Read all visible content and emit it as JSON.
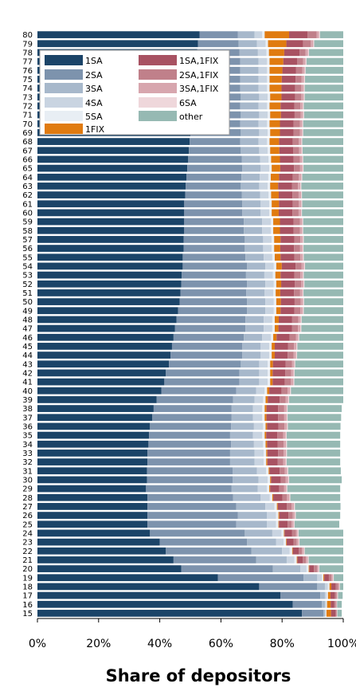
{
  "chart_data": {
    "type": "bar",
    "orientation": "horizontal",
    "stacked": true,
    "xlabel": "Share of depositors",
    "ylabel": "",
    "xlim": [
      0,
      100
    ],
    "x_ticks": [
      "0%",
      "20%",
      "40%",
      "60%",
      "80%",
      "100%"
    ],
    "legend_position": "top-left",
    "categories": [
      "15",
      "16",
      "17",
      "18",
      "19",
      "20",
      "21",
      "22",
      "23",
      "24",
      "25",
      "26",
      "27",
      "28",
      "29",
      "30",
      "31",
      "32",
      "33",
      "34",
      "35",
      "36",
      "37",
      "38",
      "39",
      "40",
      "41",
      "42",
      "43",
      "44",
      "45",
      "46",
      "47",
      "48",
      "49",
      "50",
      "51",
      "52",
      "53",
      "54",
      "55",
      "56",
      "57",
      "58",
      "59",
      "60",
      "61",
      "62",
      "63",
      "64",
      "65",
      "66",
      "67",
      "68",
      "69",
      "70",
      "71",
      "72",
      "73",
      "74",
      "75",
      "76",
      "77",
      "78",
      "79",
      "80"
    ],
    "series": [
      {
        "name": "1SA",
        "color": "#1b4468",
        "values": [
          86.5,
          83.5,
          79.5,
          72.5,
          59,
          47,
          44.5,
          42,
          40,
          36.8,
          36,
          36,
          36,
          36,
          35.5,
          35.8,
          35.8,
          36,
          36,
          36.3,
          36.5,
          36.8,
          37.5,
          38,
          39,
          40.5,
          41.5,
          42,
          43,
          43.5,
          44,
          44.5,
          45,
          45.5,
          46,
          46.5,
          46.8,
          47,
          47.2,
          47.5,
          47.5,
          47.8,
          47.8,
          48,
          48,
          48,
          48,
          48.3,
          48.5,
          48.7,
          49,
          49.3,
          49.5,
          49.8,
          50,
          50.3,
          50.5,
          50.8,
          51,
          51.3,
          51.5,
          51.8,
          52,
          52.3,
          52.5,
          53
        ]
      },
      {
        "name": "2SA",
        "color": "#7d93ad",
        "values": [
          7,
          9.5,
          13,
          19,
          28,
          30,
          27,
          28,
          28.5,
          31,
          29,
          29.5,
          29,
          28,
          28,
          28,
          28,
          27,
          27,
          27,
          26.5,
          26.5,
          26,
          25.5,
          25,
          24.5,
          24.5,
          24,
          23.5,
          23.5,
          23,
          23,
          23,
          22.5,
          22.5,
          22,
          21.5,
          21.5,
          21,
          21,
          20.5,
          20,
          20,
          19.5,
          19.5,
          19,
          19,
          18.5,
          18,
          18,
          18,
          17.5,
          17,
          16.5,
          16.5,
          16,
          16,
          15.5,
          15.5,
          15,
          14.8,
          14.5,
          14.3,
          13.8,
          13.3,
          12.5
        ]
      },
      {
        "name": "3SA",
        "color": "#a7b8cb",
        "values": [
          0.5,
          1,
          1.5,
          2.5,
          4.5,
          9,
          10,
          10,
          9.5,
          9,
          10,
          9.5,
          9.5,
          9,
          8.5,
          8.5,
          8,
          8,
          8,
          7.5,
          7.5,
          7.5,
          7,
          7,
          7,
          6.5,
          6.5,
          6.5,
          6,
          6,
          6,
          6,
          6,
          6,
          6,
          6,
          6,
          6,
          6,
          6,
          6,
          6,
          6,
          6,
          6,
          6,
          6,
          6,
          6,
          6,
          6,
          6,
          6,
          6,
          6,
          6,
          6,
          6,
          6,
          6,
          6,
          6,
          6,
          6,
          6,
          5.5
        ]
      },
      {
        "name": "4SA",
        "color": "#c9d4e1",
        "values": [
          0.3,
          0.4,
          0.6,
          1,
          1.5,
          2,
          2.5,
          2.5,
          2.5,
          3,
          3,
          3,
          3,
          3,
          3,
          3,
          3,
          3,
          3,
          3,
          3,
          3,
          3,
          3,
          2.8,
          2.8,
          2.8,
          2.8,
          2.8,
          2.8,
          2.8,
          2.8,
          2.8,
          2.8,
          2.8,
          2.8,
          2.8,
          2.8,
          2.8,
          2.8,
          2.8,
          2.8,
          2.8,
          2.8,
          2.8,
          2.8,
          2.8,
          2.8,
          2.8,
          2.8,
          2.8,
          2.8,
          2.8,
          2.8,
          2.8,
          2.8,
          2.8,
          2.8,
          2.8,
          2.8,
          2.8,
          2.8,
          2.8,
          2.8,
          2.8,
          2.5
        ]
      },
      {
        "name": "5SA",
        "color": "#e8eef4",
        "values": [
          0.2,
          0.3,
          0.4,
          0.5,
          0.5,
          0.7,
          0.8,
          0.8,
          0.8,
          0.8,
          0.8,
          0.8,
          0.8,
          0.8,
          0.8,
          0.8,
          0.8,
          0.8,
          0.8,
          0.8,
          0.8,
          0.8,
          0.8,
          0.8,
          0.8,
          0.8,
          0.8,
          0.8,
          0.8,
          0.8,
          0.8,
          0.8,
          0.8,
          0.8,
          0.8,
          0.8,
          0.8,
          0.8,
          0.8,
          0.8,
          0.8,
          0.8,
          0.8,
          0.8,
          0.8,
          0.8,
          0.8,
          0.8,
          0.8,
          0.8,
          0.8,
          0.8,
          0.8,
          0.8,
          0.8,
          0.8,
          0.8,
          0.8,
          0.8,
          0.8,
          0.8,
          0.8,
          0.8,
          0.8,
          0.8,
          0.8
        ]
      },
      {
        "name": "1FIX",
        "color": "#e07b10",
        "values": [
          1.5,
          1.2,
          0.8,
          0.6,
          0.3,
          0.2,
          0.2,
          0.2,
          0.2,
          0.2,
          0.2,
          0.3,
          0.3,
          0.3,
          0.3,
          0.3,
          0.3,
          0.4,
          0.4,
          0.5,
          0.5,
          0.5,
          0.6,
          0.6,
          0.7,
          0.7,
          0.8,
          0.8,
          0.9,
          1,
          1,
          1.1,
          1.2,
          1.3,
          1.4,
          1.5,
          1.5,
          1.6,
          1.7,
          1.8,
          1.9,
          2,
          2.1,
          2.2,
          2.2,
          2.3,
          2.4,
          2.5,
          2.6,
          2.7,
          2.8,
          2.9,
          3,
          3.1,
          3.2,
          3.4,
          3.5,
          3.6,
          3.7,
          3.9,
          4,
          4.2,
          4.5,
          5,
          6,
          8
        ]
      },
      {
        "name": "1SA,1FIX",
        "color": "#a85262",
        "values": [
          1.5,
          1.2,
          1.5,
          1.5,
          1.5,
          1.5,
          1.8,
          2,
          2.3,
          2.5,
          2.8,
          3,
          3,
          3,
          3,
          3.2,
          3.3,
          3.4,
          3.5,
          3.5,
          3.6,
          3.7,
          3.8,
          3.8,
          3.9,
          4,
          4,
          4.1,
          4.2,
          4.2,
          4.3,
          4.3,
          4.4,
          4.4,
          4.5,
          4.5,
          4.5,
          4.5,
          4.5,
          4.5,
          4.5,
          4.5,
          4.5,
          4.5,
          4.5,
          4.5,
          4.5,
          4.5,
          4.5,
          4.5,
          4.5,
          4.5,
          4.5,
          4.5,
          4.5,
          4.5,
          4.5,
          4.5,
          4.5,
          4.5,
          4.5,
          4.5,
          4.5,
          5,
          5.5,
          6
        ]
      },
      {
        "name": "2SA,1FIX",
        "color": "#c0808a",
        "values": [
          0.3,
          0.5,
          0.5,
          0.7,
          0.8,
          1,
          1,
          1,
          1,
          1.2,
          1.3,
          1.4,
          1.5,
          1.5,
          1.5,
          1.6,
          1.7,
          1.8,
          1.8,
          1.9,
          2,
          2,
          2,
          2,
          2,
          2,
          2,
          2,
          2,
          2,
          2,
          2,
          2,
          2,
          2,
          2,
          2,
          2,
          2,
          2,
          2,
          2,
          2,
          2,
          2,
          2,
          2,
          2,
          2,
          2,
          2,
          2,
          2,
          2,
          2,
          2,
          2,
          2,
          2,
          2,
          2,
          2,
          2,
          2,
          2.5,
          3
        ]
      },
      {
        "name": "3SA,1FIX",
        "color": "#d7a6ae",
        "values": [
          0.2,
          0.3,
          0.3,
          0.4,
          0.5,
          0.5,
          0.6,
          0.6,
          0.6,
          0.6,
          0.7,
          0.7,
          0.8,
          0.8,
          0.8,
          0.8,
          0.8,
          0.8,
          0.8,
          0.8,
          0.8,
          0.8,
          0.8,
          0.8,
          0.8,
          0.8,
          0.8,
          0.8,
          0.8,
          0.8,
          0.8,
          0.8,
          0.8,
          0.8,
          0.8,
          0.8,
          0.8,
          0.8,
          0.8,
          0.8,
          0.8,
          0.8,
          0.8,
          0.8,
          0.8,
          0.8,
          0.8,
          0.8,
          0.8,
          0.8,
          0.8,
          0.8,
          0.8,
          0.8,
          0.8,
          0.8,
          0.8,
          0.8,
          0.8,
          0.8,
          0.8,
          0.8,
          0.8,
          0.8,
          0.8,
          0.8
        ]
      },
      {
        "name": "6SA",
        "color": "#efd7db",
        "values": [
          0.1,
          0.1,
          0.2,
          0.2,
          0.3,
          0.3,
          0.3,
          0.3,
          0.3,
          0.3,
          0.3,
          0.3,
          0.3,
          0.3,
          0.3,
          0.3,
          0.3,
          0.3,
          0.3,
          0.3,
          0.3,
          0.3,
          0.3,
          0.3,
          0.3,
          0.3,
          0.3,
          0.3,
          0.3,
          0.3,
          0.3,
          0.3,
          0.3,
          0.3,
          0.3,
          0.3,
          0.3,
          0.3,
          0.3,
          0.3,
          0.3,
          0.3,
          0.3,
          0.3,
          0.3,
          0.3,
          0.3,
          0.3,
          0.3,
          0.3,
          0.3,
          0.3,
          0.3,
          0.3,
          0.3,
          0.3,
          0.3,
          0.3,
          0.3,
          0.3,
          0.3,
          0.3,
          0.3,
          0.3,
          0.3,
          0.3
        ]
      },
      {
        "name": "other",
        "color": "#96b9b3",
        "values": [
          1.4,
          1.5,
          1.5,
          1.6,
          3.1,
          8.8,
          12.8,
          13.6,
          14.5,
          14.6,
          14.6,
          14.5,
          14.9,
          16.3,
          17.3,
          17.2,
          17.2,
          17.5,
          17.4,
          17.4,
          17.5,
          17.2,
          17.5,
          17.7,
          17.7,
          17.1,
          16.2,
          16.2,
          16.3,
          15.6,
          15.5,
          14.9,
          14.4,
          14.3,
          13.6,
          13.3,
          13.6,
          13.4,
          13.3,
          13,
          13.2,
          13.4,
          13.3,
          13.4,
          13.4,
          13.8,
          13.7,
          13.7,
          13.9,
          13.6,
          13.3,
          13.5,
          13.6,
          13.8,
          13.4,
          13.4,
          13.1,
          13.5,
          13.2,
          13.4,
          13.4,
          13.3,
          13.1,
          12.8,
          12.5,
          11.8
        ]
      }
    ]
  }
}
